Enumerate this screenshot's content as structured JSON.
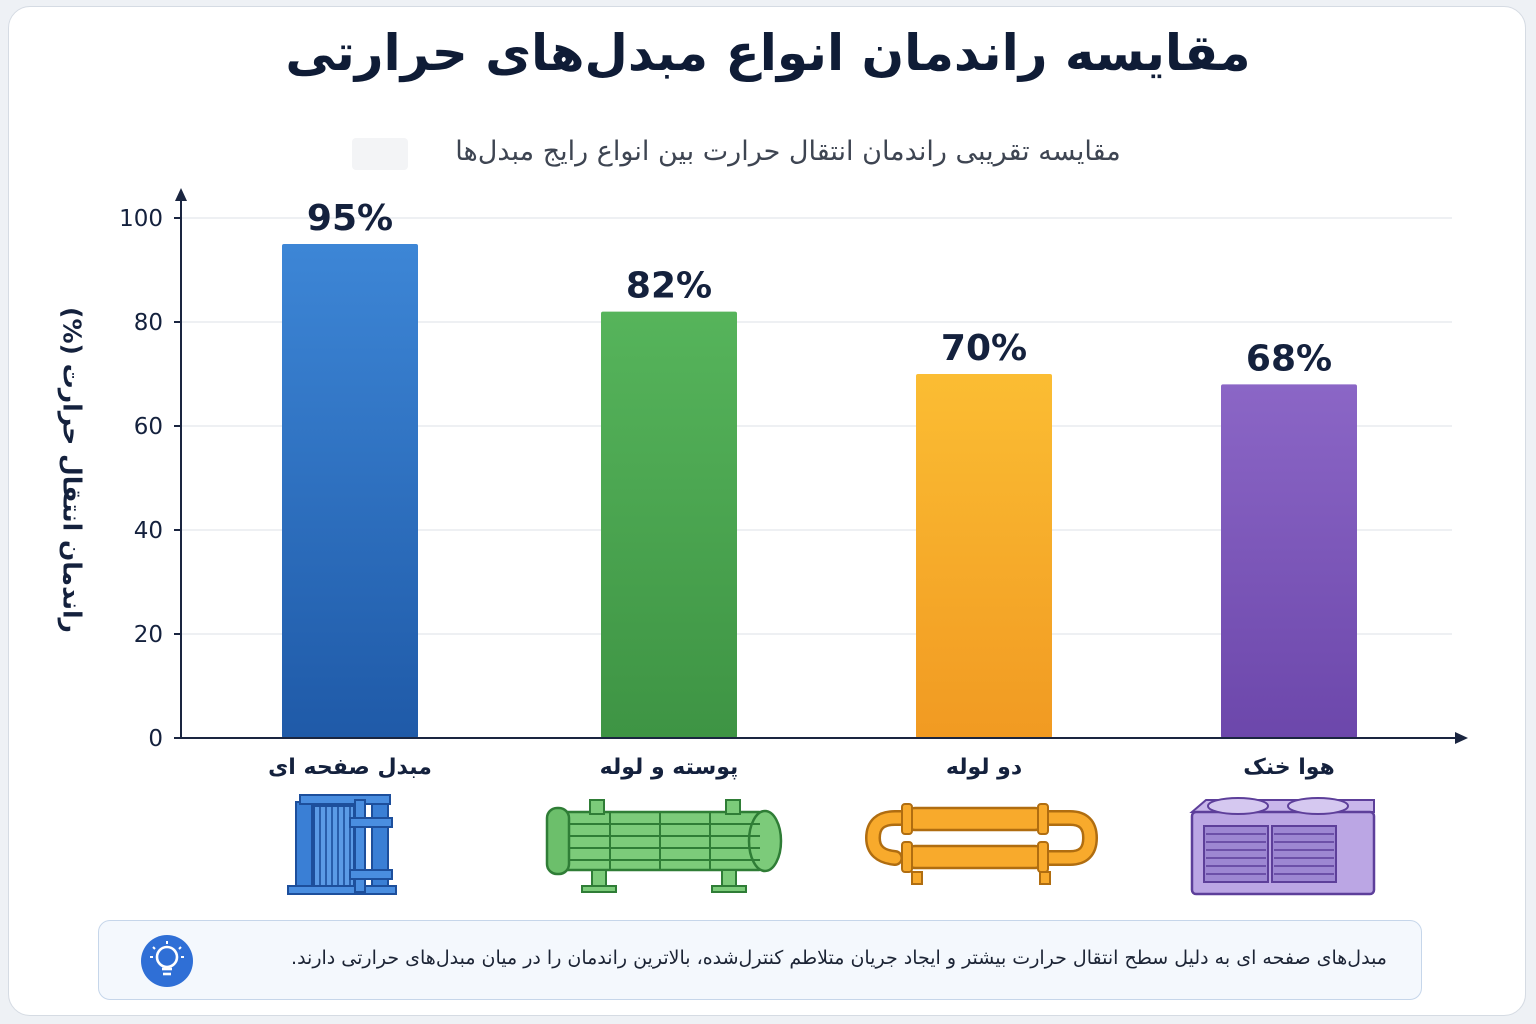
{
  "title": "مقایسه راندمان انواع مبدل‌های حرارتی",
  "subtitle": "مقایسه تقریبی راندمان انتقال حرارت بین انواع رایج مبدل‌ها",
  "chart_data": {
    "type": "bar",
    "title": "مقایسه راندمان انواع مبدل‌های حرارتی",
    "subtitle": "مقایسه تقریبی راندمان انتقال حرارت بین انواع رایج مبدل‌ها",
    "ylabel": "راندمان انتقال حرارت (%)",
    "xlabel": "",
    "categories": [
      "مبدل صفحه ای",
      "پوسته و لوله",
      "دو لوله",
      "هوا خنک"
    ],
    "values": [
      95,
      82,
      70,
      68
    ],
    "value_labels": [
      "95%",
      "82%",
      "70%",
      "68%"
    ],
    "ylim": [
      0,
      100
    ],
    "yticks": [
      0,
      20,
      40,
      60,
      80,
      100
    ],
    "grid": true,
    "legend": "none",
    "colors": [
      "#2f72cc",
      "#49a64f",
      "#f6a623",
      "#7c56b8"
    ],
    "icons": [
      "plate-heat-exchanger-icon",
      "shell-and-tube-heat-exchanger-icon",
      "double-pipe-heat-exchanger-icon",
      "air-cooled-heat-exchanger-icon"
    ]
  },
  "footnote": {
    "text": "مبدل‌های صفحه ای به دلیل سطح انتقال حرارت بیشتر و ایجاد جریان متلاطم کنترل‌شده، بالاترین راندمان را در میان مبدل‌های حرارتی دارند.",
    "icon": "lightbulb-icon"
  }
}
